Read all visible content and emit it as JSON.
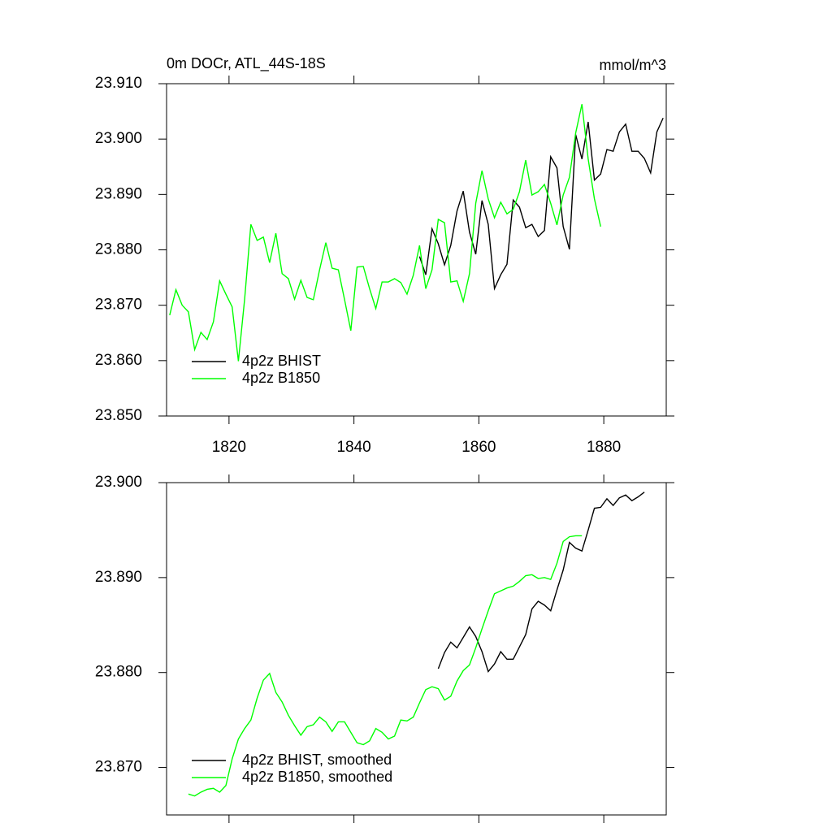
{
  "chart_data": [
    {
      "type": "line",
      "title": "0m DOCr, ATL_44S-18S",
      "y_units": "mmol/m^3",
      "xlim": [
        1810,
        1890
      ],
      "xticks": [
        1820,
        1840,
        1860,
        1880
      ],
      "xtick_labels": true,
      "ylim": [
        23.85,
        23.91
      ],
      "yticks": [
        {
          "value": 23.85,
          "label": "23.850"
        },
        {
          "value": 23.86,
          "label": "23.860"
        },
        {
          "value": 23.87,
          "label": "23.870"
        },
        {
          "value": 23.88,
          "label": "23.880"
        },
        {
          "value": 23.89,
          "label": "23.890"
        },
        {
          "value": 23.9,
          "label": "23.900"
        },
        {
          "value": 23.91,
          "label": "23.910"
        }
      ],
      "legend": "lower left",
      "series": [
        {
          "name": "4p2z BHIST",
          "color": "#000000",
          "x": [
            1850.5,
            1851.5,
            1852.5,
            1853.5,
            1854.5,
            1855.5,
            1856.5,
            1857.5,
            1858.5,
            1859.5,
            1860.5,
            1861.5,
            1862.5,
            1863.5,
            1864.5,
            1865.5,
            1866.5,
            1867.5,
            1868.5,
            1869.5,
            1870.5,
            1871.5,
            1872.5,
            1873.5,
            1874.5,
            1875.5,
            1876.5,
            1877.5,
            1878.5,
            1879.5,
            1880.5,
            1881.5,
            1882.5,
            1883.5,
            1884.5,
            1885.5,
            1886.5,
            1887.5,
            1888.5,
            1889.5
          ],
          "values": [
            23.8788,
            23.8755,
            23.8838,
            23.8811,
            23.8773,
            23.8808,
            23.887,
            23.8906,
            23.8832,
            23.8792,
            23.8889,
            23.8846,
            23.873,
            23.8755,
            23.8774,
            23.889,
            23.8877,
            23.884,
            23.8846,
            23.8824,
            23.8835,
            23.8968,
            23.8948,
            23.8842,
            23.8801,
            23.9008,
            23.8964,
            23.9031,
            23.8926,
            23.8937,
            23.8981,
            23.8978,
            23.9013,
            23.9027,
            23.8978,
            23.8978,
            23.8965,
            23.8939,
            23.9013,
            23.9038
          ]
        },
        {
          "name": "4p2z B1850",
          "color": "#00ff00",
          "x": [
            1810.5,
            1811.5,
            1812.5,
            1813.5,
            1814.5,
            1815.5,
            1816.5,
            1817.5,
            1818.5,
            1819.5,
            1820.5,
            1821.5,
            1822.5,
            1823.5,
            1824.5,
            1825.5,
            1826.5,
            1827.5,
            1828.5,
            1829.5,
            1830.5,
            1831.5,
            1832.5,
            1833.5,
            1834.5,
            1835.5,
            1836.5,
            1837.5,
            1838.5,
            1839.5,
            1840.5,
            1841.5,
            1842.5,
            1843.5,
            1844.5,
            1845.5,
            1846.5,
            1847.5,
            1848.5,
            1849.5,
            1850.5,
            1851.5,
            1852.5,
            1853.5,
            1854.5,
            1855.5,
            1856.5,
            1857.5,
            1858.5,
            1859.5,
            1860.5,
            1861.5,
            1862.5,
            1863.5,
            1864.5,
            1865.5,
            1866.5,
            1867.5,
            1868.5,
            1869.5,
            1870.5,
            1871.5,
            1872.5,
            1873.5,
            1874.5,
            1875.5,
            1876.5,
            1877.5,
            1878.5,
            1879.5
          ],
          "values": [
            23.8682,
            23.8728,
            23.87,
            23.8688,
            23.862,
            23.8651,
            23.8638,
            23.867,
            23.8744,
            23.872,
            23.8697,
            23.8599,
            23.8711,
            23.8846,
            23.8817,
            23.8823,
            23.8777,
            23.883,
            23.8757,
            23.8748,
            23.8711,
            23.8745,
            23.8714,
            23.871,
            23.8764,
            23.8813,
            23.8767,
            23.8764,
            23.871,
            23.8654,
            23.8769,
            23.877,
            23.873,
            23.8694,
            23.8742,
            23.8742,
            23.8748,
            23.8741,
            23.872,
            23.8754,
            23.8808,
            23.873,
            23.8764,
            23.8855,
            23.8849,
            23.8742,
            23.8744,
            23.8707,
            23.8757,
            23.8884,
            23.8943,
            23.8892,
            23.8858,
            23.8886,
            23.8865,
            23.8873,
            23.8905,
            23.8962,
            23.8899,
            23.8905,
            23.8918,
            23.8884,
            23.8845,
            23.8899,
            23.8931,
            23.9011,
            23.9063,
            23.8964,
            23.8892,
            23.8842
          ]
        }
      ]
    },
    {
      "type": "line",
      "xlim": [
        1810,
        1890
      ],
      "xticks": [
        1820,
        1840,
        1860,
        1880
      ],
      "xtick_labels": false,
      "ylim": [
        23.865,
        23.9
      ],
      "yticks": [
        {
          "value": 23.87,
          "label": "23.870"
        },
        {
          "value": 23.88,
          "label": "23.880"
        },
        {
          "value": 23.89,
          "label": "23.890"
        },
        {
          "value": 23.9,
          "label": "23.900"
        }
      ],
      "legend": "lower left",
      "series": [
        {
          "name": "4p2z BHIST, smoothed",
          "color": "#000000",
          "x": [
            1853.5,
            1854.5,
            1855.5,
            1856.5,
            1857.5,
            1858.5,
            1859.5,
            1860.5,
            1861.5,
            1862.5,
            1863.5,
            1864.5,
            1865.5,
            1866.5,
            1867.5,
            1868.5,
            1869.5,
            1870.5,
            1871.5,
            1872.5,
            1873.5,
            1874.5,
            1875.5,
            1876.5,
            1877.5,
            1878.5,
            1879.5,
            1880.5,
            1881.5,
            1882.5,
            1883.5,
            1884.5,
            1885.5,
            1886.5
          ],
          "values": [
            23.8804,
            23.8821,
            23.8832,
            23.8826,
            23.8837,
            23.8848,
            23.8838,
            23.8822,
            23.8801,
            23.8809,
            23.8822,
            23.8814,
            23.8814,
            23.8827,
            23.884,
            23.8867,
            23.8875,
            23.8871,
            23.8865,
            23.8887,
            23.8908,
            23.8937,
            23.8931,
            23.8928,
            23.895,
            23.8973,
            23.8974,
            23.8983,
            23.8976,
            23.8984,
            23.8987,
            23.8981,
            23.8985,
            23.899
          ]
        },
        {
          "name": "4p2z B1850, smoothed",
          "color": "#00ff00",
          "x": [
            1813.5,
            1814.5,
            1815.5,
            1816.5,
            1817.5,
            1818.5,
            1819.5,
            1820.5,
            1821.5,
            1822.5,
            1823.5,
            1824.5,
            1825.5,
            1826.5,
            1827.5,
            1828.5,
            1829.5,
            1830.5,
            1831.5,
            1832.5,
            1833.5,
            1834.5,
            1835.5,
            1836.5,
            1837.5,
            1838.5,
            1839.5,
            1840.5,
            1841.5,
            1842.5,
            1843.5,
            1844.5,
            1845.5,
            1846.5,
            1847.5,
            1848.5,
            1849.5,
            1850.5,
            1851.5,
            1852.5,
            1853.5,
            1854.5,
            1855.5,
            1856.5,
            1857.5,
            1858.5,
            1859.5,
            1860.5,
            1861.5,
            1862.5,
            1863.5,
            1864.5,
            1865.5,
            1866.5,
            1867.5,
            1868.5,
            1869.5,
            1870.5,
            1871.5,
            1872.5,
            1873.5,
            1874.5,
            1875.5,
            1876.5
          ],
          "values": [
            23.8672,
            23.867,
            23.8674,
            23.8677,
            23.8678,
            23.8674,
            23.8681,
            23.8709,
            23.873,
            23.8741,
            23.875,
            23.8773,
            23.8792,
            23.8799,
            23.8779,
            23.8769,
            23.8755,
            23.8744,
            23.8734,
            23.8743,
            23.8745,
            23.8753,
            23.8748,
            23.8738,
            23.8748,
            23.8748,
            23.8737,
            23.8726,
            23.8724,
            23.8728,
            23.8741,
            23.8737,
            23.873,
            23.8733,
            23.875,
            23.8749,
            23.8753,
            23.8768,
            23.8782,
            23.8785,
            23.8783,
            23.8771,
            23.8775,
            23.8791,
            23.8802,
            23.8808,
            23.8826,
            23.8846,
            23.8865,
            23.8883,
            23.8886,
            23.8889,
            23.8891,
            23.8896,
            23.8902,
            23.8903,
            23.8899,
            23.89,
            23.8898,
            23.8915,
            23.8938,
            23.8943,
            23.8944,
            23.8944
          ]
        }
      ]
    }
  ]
}
